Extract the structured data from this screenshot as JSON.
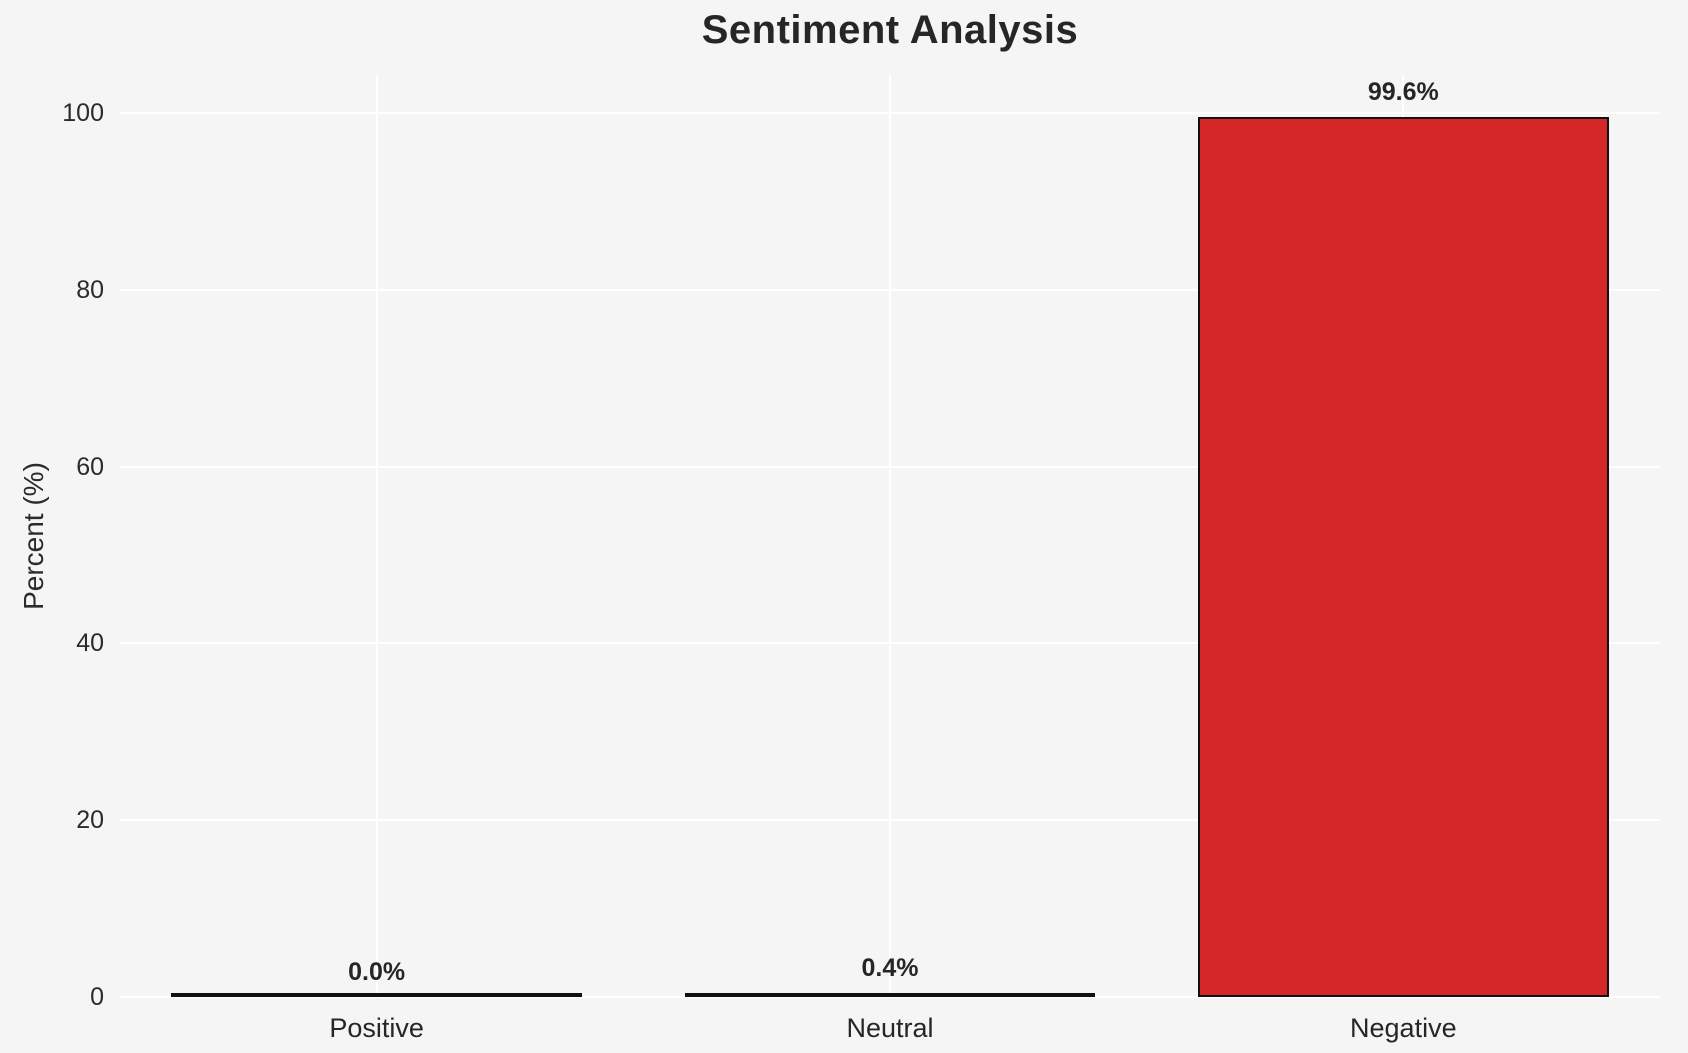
{
  "chart_data": {
    "type": "bar",
    "title": "Sentiment Analysis",
    "xlabel": "",
    "ylabel": "Percent (%)",
    "categories": [
      "Positive",
      "Neutral",
      "Negative"
    ],
    "values": [
      0.0,
      0.4,
      99.6
    ],
    "value_labels": [
      "0.0%",
      "0.4%",
      "99.6%"
    ],
    "yticks": [
      0,
      20,
      40,
      60,
      80,
      100
    ],
    "ylim": [
      0,
      104.3
    ],
    "grid": true,
    "legend": false,
    "bar_fills": [
      "transparent",
      "#111111",
      "#d62728"
    ],
    "bar_edge_color": "#111111",
    "colors": {
      "background": "#f5f5f5",
      "gridline": "#ffffff",
      "title_text": "#262626",
      "tick_text": "#2b2b2b",
      "negative_bar": "#d62728"
    }
  }
}
